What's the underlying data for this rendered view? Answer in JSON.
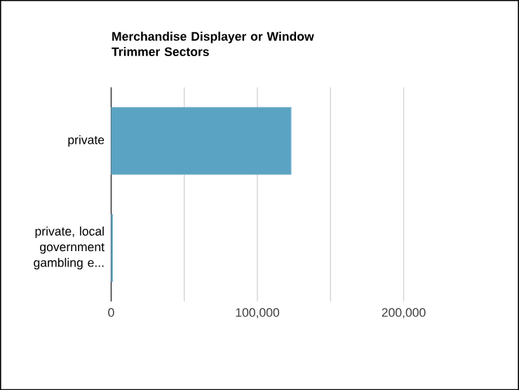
{
  "chart_data": {
    "type": "bar",
    "orientation": "horizontal",
    "title": "Merchandise Displayer or Window Trimmer Sectors",
    "categories": [
      "private",
      "private, local government gambling e..."
    ],
    "values": [
      123000,
      1000
    ],
    "color": "#5ba3c2",
    "xlim": [
      0,
      200000
    ],
    "xticks": [
      0,
      {
        "value": 50000,
        "label": null
      },
      {
        "value": 100000,
        "label": "100,000"
      },
      {
        "value": 150000,
        "label": null
      },
      {
        "value": 200000,
        "label": "200,000"
      }
    ],
    "grid": "x"
  }
}
